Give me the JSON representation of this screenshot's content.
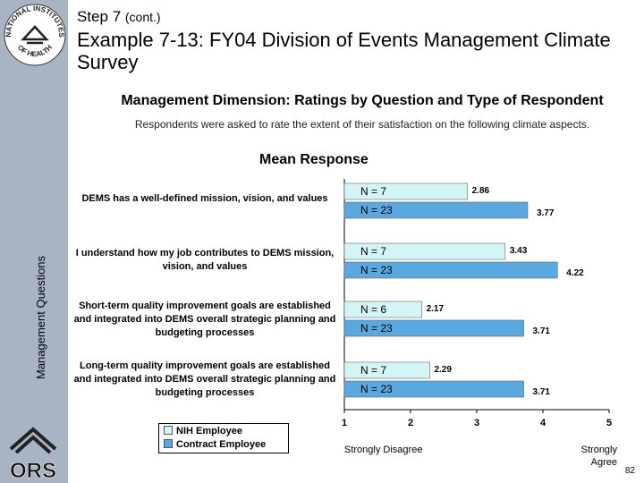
{
  "header": {
    "step": "Step 7",
    "step_note": "(cont.)",
    "title": "Example 7-13: FY04 Division of Events Management Climate Survey"
  },
  "logos": {
    "top_text": "NATIONAL INSTITUTES OF HEALTH",
    "bottom_text": "ORS"
  },
  "subtitle": "Management Dimension:  Ratings by Question and Type of Respondent",
  "description": "Respondents were asked to rate the extent of their satisfaction on the following climate aspects.",
  "axis": {
    "y_title": "Management Questions",
    "low_label": "Strongly Disagree",
    "high_label": "Strongly Agree"
  },
  "chart_data": {
    "type": "bar",
    "orientation": "horizontal",
    "title": "Mean Response",
    "xlabel": "",
    "ylabel": "Management Questions",
    "xlim": [
      1,
      5
    ],
    "ticks": [
      "1",
      "2",
      "3",
      "4",
      "5"
    ],
    "categories": [
      "DEMS has a well-defined mission, vision, and values",
      "I understand how my job contributes to DEMS mission, vision, and values",
      "Short-term quality improvement goals are established and integrated into DEMS overall strategic planning and budgeting processes",
      "Long-term quality improvement goals are established and integrated into DEMS overall strategic planning and budgeting processes"
    ],
    "series": [
      {
        "name": "NIH Employee",
        "color": "#d4f5f5",
        "values": [
          2.86,
          3.43,
          2.17,
          2.29
        ],
        "n_labels": [
          "N = 7",
          "N = 7",
          "N = 6",
          "N = 7"
        ],
        "value_labels": [
          "2.86",
          "3.43",
          "2.17",
          "2.29"
        ]
      },
      {
        "name": "Contract Employee",
        "color": "#5aa8e0",
        "values": [
          3.77,
          4.22,
          3.71,
          3.71
        ],
        "n_labels": [
          "N = 23",
          "N = 23",
          "N = 23",
          "N = 23"
        ],
        "value_labels": [
          "3.77",
          "4.22",
          "3.71",
          "3.71"
        ]
      }
    ],
    "legend_position": "bottom-left"
  },
  "page_number": "82"
}
